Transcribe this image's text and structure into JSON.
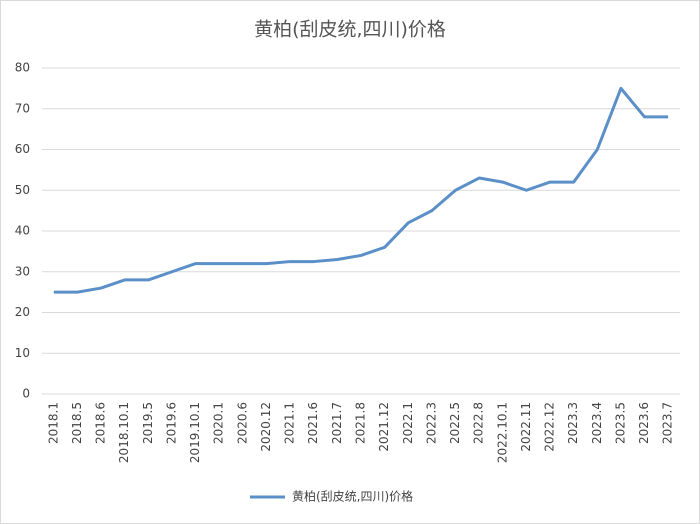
{
  "chart_data": {
    "type": "line",
    "title": "黄柏(刮皮统,四川)价格",
    "categories": [
      "2018.1",
      "2018.5",
      "2018.6",
      "2018.10.1",
      "2019.5",
      "2019.6",
      "2019.10.1",
      "2020.1",
      "2020.6",
      "2020.12",
      "2021.1",
      "2021.6",
      "2021.7",
      "2021.8",
      "2021.12",
      "2022.1",
      "2022.3",
      "2022.5",
      "2022.8",
      "2022.10.1",
      "2022.11",
      "2022.12",
      "2023.3",
      "2023.4",
      "2023.5",
      "2023.6",
      "2023.7"
    ],
    "series": [
      {
        "name": "黄柏(刮皮统,四川)价格",
        "color": "#5b8fc7",
        "values": [
          25,
          25,
          26,
          28,
          28,
          30,
          32,
          32,
          32,
          32,
          32.5,
          32.5,
          33,
          34,
          36,
          42,
          45,
          50,
          53,
          52,
          50,
          52,
          52,
          60,
          75,
          68,
          68
        ]
      }
    ],
    "ylim": [
      0,
      80
    ],
    "yticks": [
      0,
      10,
      20,
      30,
      40,
      50,
      60,
      70,
      80
    ],
    "grid": true,
    "legend": "bottom"
  }
}
